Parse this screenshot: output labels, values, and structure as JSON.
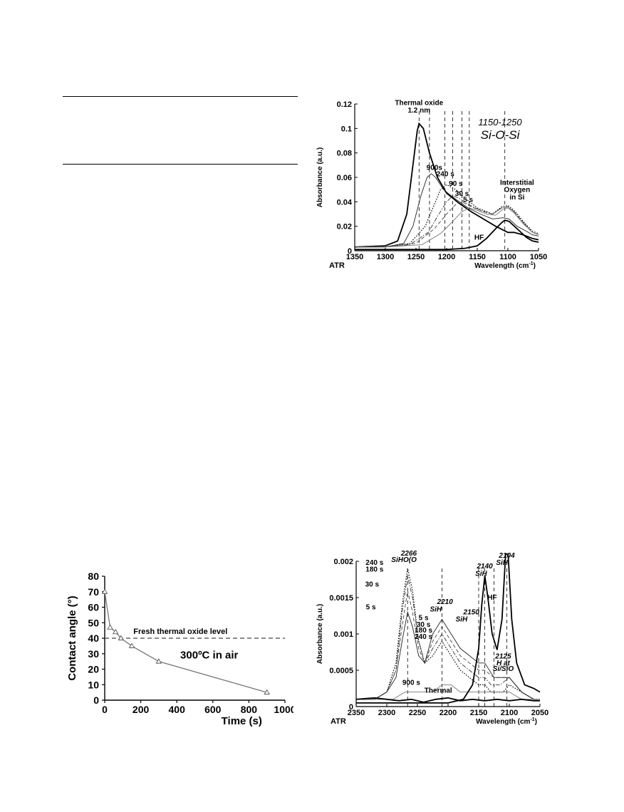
{
  "chart_data": [
    {
      "type": "line",
      "panel": "si-o-si",
      "title": "1150-1250",
      "subtitle": "Si-O-Si",
      "corner_label": "ATR",
      "xlabel": "Wavelength (cm",
      "xlabel_sup": "-1",
      "xlabel_end": ")",
      "ylabel": "Absorbance (a.u.)",
      "xlim": [
        1350,
        1050
      ],
      "ylim": [
        0,
        0.12
      ],
      "xticks": [
        "1350",
        "1300",
        "1250",
        "1200",
        "1150",
        "1100",
        "1050"
      ],
      "yticks": [
        "0",
        "0.02",
        "0.04",
        "0.06",
        "0.08",
        "0.1",
        "0.12"
      ],
      "annotations": [
        {
          "text": "Thermal oxide",
          "x": 1245,
          "y": 0.119
        },
        {
          "text": "1.2 nm",
          "x": 1245,
          "y": 0.113
        },
        {
          "text": "900s",
          "x": 1220,
          "y": 0.066
        },
        {
          "text": "240 s",
          "x": 1202,
          "y": 0.061
        },
        {
          "text": "90 s",
          "x": 1185,
          "y": 0.053
        },
        {
          "text": "30 s",
          "x": 1175,
          "y": 0.045
        },
        {
          "text": "5 s",
          "x": 1165,
          "y": 0.04
        },
        {
          "text": "HF",
          "x": 1147,
          "y": 0.009
        },
        {
          "text": "Interstitial",
          "x": 1085,
          "y": 0.054
        },
        {
          "text": "Oxygen",
          "x": 1085,
          "y": 0.048
        },
        {
          "text": "in Si",
          "x": 1085,
          "y": 0.042
        }
      ],
      "peak_lines": [
        1245,
        1228,
        1203,
        1190,
        1175,
        1163,
        1105
      ],
      "series": [
        {
          "label": "Thermal oxide",
          "style": "thick",
          "x": [
            1350,
            1300,
            1280,
            1265,
            1255,
            1248,
            1245,
            1238,
            1228,
            1215,
            1200,
            1180,
            1160,
            1140,
            1120,
            1108,
            1100,
            1090,
            1075,
            1060,
            1050
          ],
          "y": [
            0.003,
            0.004,
            0.008,
            0.03,
            0.07,
            0.098,
            0.104,
            0.1,
            0.08,
            0.06,
            0.047,
            0.039,
            0.032,
            0.026,
            0.02,
            0.017,
            0.015,
            0.015,
            0.013,
            0.01,
            0.009
          ]
        },
        {
          "label": "900s",
          "style": "thin",
          "x": [
            1350,
            1300,
            1270,
            1255,
            1242,
            1232,
            1225,
            1218,
            1205,
            1185,
            1165,
            1145,
            1125,
            1108,
            1098,
            1085,
            1070,
            1060,
            1050
          ],
          "y": [
            0.003,
            0.003,
            0.006,
            0.02,
            0.045,
            0.06,
            0.063,
            0.06,
            0.05,
            0.042,
            0.035,
            0.03,
            0.026,
            0.027,
            0.026,
            0.02,
            0.016,
            0.013,
            0.012
          ]
        },
        {
          "label": "240 s",
          "style": "dotted",
          "x": [
            1350,
            1300,
            1260,
            1235,
            1220,
            1210,
            1200,
            1185,
            1170,
            1150,
            1125,
            1110,
            1100,
            1090,
            1075,
            1060,
            1050
          ],
          "y": [
            0.003,
            0.003,
            0.006,
            0.02,
            0.038,
            0.05,
            0.054,
            0.05,
            0.043,
            0.035,
            0.03,
            0.036,
            0.037,
            0.033,
            0.024,
            0.016,
            0.014
          ]
        },
        {
          "label": "90 s",
          "style": "dashdot",
          "x": [
            1350,
            1300,
            1260,
            1230,
            1215,
            1200,
            1190,
            1180,
            1165,
            1145,
            1125,
            1110,
            1100,
            1090,
            1075,
            1060,
            1050
          ],
          "y": [
            0.003,
            0.003,
            0.005,
            0.015,
            0.028,
            0.04,
            0.045,
            0.043,
            0.038,
            0.033,
            0.03,
            0.035,
            0.036,
            0.032,
            0.023,
            0.015,
            0.013
          ]
        },
        {
          "label": "30 s",
          "style": "dashed",
          "x": [
            1350,
            1300,
            1250,
            1220,
            1200,
            1185,
            1175,
            1160,
            1140,
            1125,
            1110,
            1100,
            1090,
            1075,
            1060,
            1050
          ],
          "y": [
            0.003,
            0.003,
            0.006,
            0.018,
            0.03,
            0.038,
            0.04,
            0.036,
            0.032,
            0.03,
            0.035,
            0.036,
            0.032,
            0.023,
            0.015,
            0.013
          ]
        },
        {
          "label": "5 s",
          "style": "thin-gray",
          "x": [
            1350,
            1300,
            1240,
            1210,
            1190,
            1175,
            1163,
            1150,
            1135,
            1120,
            1108,
            1100,
            1090,
            1075,
            1060,
            1050
          ],
          "y": [
            0.003,
            0.003,
            0.005,
            0.014,
            0.024,
            0.032,
            0.035,
            0.033,
            0.03,
            0.029,
            0.034,
            0.035,
            0.031,
            0.022,
            0.015,
            0.013
          ]
        },
        {
          "label": "HF",
          "style": "thick",
          "x": [
            1350,
            1250,
            1200,
            1170,
            1150,
            1135,
            1120,
            1110,
            1105,
            1098,
            1085,
            1070,
            1060,
            1050
          ],
          "y": [
            0.001,
            0.001,
            0.001,
            0.002,
            0.004,
            0.01,
            0.018,
            0.023,
            0.025,
            0.024,
            0.018,
            0.011,
            0.008,
            0.007
          ]
        }
      ]
    },
    {
      "type": "scatter",
      "panel": "contact-angle",
      "xlabel": "Time (s)",
      "ylabel": "Contact angle (°)",
      "xlim": [
        0,
        1000
      ],
      "ylim": [
        0,
        80
      ],
      "xticks": [
        "0",
        "200",
        "400",
        "600",
        "800",
        "1000"
      ],
      "yticks": [
        "0",
        "10",
        "20",
        "30",
        "40",
        "50",
        "60",
        "70",
        "80"
      ],
      "reference_line": {
        "label": "Fresh thermal oxide level",
        "y": 40
      },
      "annotation": "300ºC  in air",
      "series": [
        {
          "x": [
            0,
            30,
            60,
            90,
            150,
            300,
            900
          ],
          "y": [
            70,
            47,
            44,
            40,
            35,
            25,
            5
          ]
        }
      ]
    },
    {
      "type": "line",
      "panel": "si-h",
      "corner_label": "ATR",
      "xlabel": "Wavelength (cm",
      "xlabel_sup": "-1",
      "xlabel_end": ")",
      "ylabel": "Absorbance (a.u.)",
      "xlim": [
        2350,
        2050
      ],
      "ylim": [
        0,
        0.002
      ],
      "xticks": [
        "2350",
        "2300",
        "2250",
        "2200",
        "2150",
        "2100",
        "2050"
      ],
      "yticks": [
        "0",
        "0.0005",
        "0.001",
        "0.0015",
        "0.002"
      ],
      "peak_lines": [
        2266,
        2210,
        2150,
        2140,
        2125,
        2104
      ],
      "annotations": [
        {
          "text": "2266",
          "x": 2264,
          "y": 0.00208,
          "italic": true
        },
        {
          "text": "SiHO(O",
          "x": 2272,
          "y": 0.00199,
          "italic": true
        },
        {
          "text": "2210",
          "x": 2205,
          "y": 0.00141,
          "italic": true
        },
        {
          "text": "SiH",
          "x": 2220,
          "y": 0.00131,
          "italic": true
        },
        {
          "text": "2150",
          "x": 2162,
          "y": 0.00127,
          "italic": true
        },
        {
          "text": "SiH",
          "x": 2178,
          "y": 0.00117,
          "italic": true
        },
        {
          "text": "2140",
          "x": 2140,
          "y": 0.0019,
          "italic": true
        },
        {
          "text": "SiH",
          "x": 2146,
          "y": 0.0018,
          "italic": true
        },
        {
          "text": "2104",
          "x": 2104,
          "y": 0.00205,
          "italic": true
        },
        {
          "text": "SiH",
          "x": 2112,
          "y": 0.00195,
          "italic": true
        },
        {
          "text": "HF",
          "x": 2128,
          "y": 0.00147
        },
        {
          "text": "2125",
          "x": 2110,
          "y": 0.00066,
          "italic": true
        },
        {
          "text": "H at",
          "x": 2110,
          "y": 0.00057,
          "italic": true
        },
        {
          "text": "Si/SiO",
          "x": 2110,
          "y": 0.00049,
          "italic": true
        },
        {
          "text": "240 s",
          "x": 2320,
          "y": 0.00195
        },
        {
          "text": "180 s",
          "x": 2320,
          "y": 0.00186
        },
        {
          "text": "30 s",
          "x": 2324,
          "y": 0.00165
        },
        {
          "text": "5 s",
          "x": 2326,
          "y": 0.00134
        },
        {
          "text": "5 s",
          "x": 2240,
          "y": 0.00119
        },
        {
          "text": "30 s",
          "x": 2240,
          "y": 0.0011
        },
        {
          "text": "180 s",
          "x": 2240,
          "y": 0.00102
        },
        {
          "text": "240 s",
          "x": 2240,
          "y": 0.00093
        },
        {
          "text": "900 s",
          "x": 2260,
          "y": 0.0003
        },
        {
          "text": "Thermal",
          "x": 2216,
          "y": 0.00019
        }
      ],
      "series": [
        {
          "label": "240 s",
          "style": "dotted",
          "x": [
            2350,
            2320,
            2300,
            2285,
            2275,
            2266,
            2258,
            2248,
            2238,
            2225,
            2210,
            2195,
            2180,
            2165,
            2150,
            2140,
            2130,
            2120,
            2110,
            2100,
            2080,
            2060,
            2050
          ],
          "y": [
            0.0001,
            0.0001,
            0.0002,
            0.0006,
            0.0014,
            0.0019,
            0.0016,
            0.0009,
            0.0006,
            0.0007,
            0.0009,
            0.0007,
            0.0005,
            0.0004,
            0.0003,
            0.0003,
            0.0002,
            0.0002,
            0.0002,
            0.0003,
            0.0002,
            0.0001,
            0.0001
          ]
        },
        {
          "label": "180 s",
          "style": "dashdot",
          "x": [
            2350,
            2320,
            2300,
            2285,
            2275,
            2266,
            2258,
            2248,
            2238,
            2225,
            2210,
            2195,
            2180,
            2165,
            2150,
            2140,
            2130,
            2115,
            2100,
            2080,
            2060,
            2050
          ],
          "y": [
            0.0001,
            0.0001,
            0.0002,
            0.0005,
            0.0013,
            0.0018,
            0.0015,
            0.0009,
            0.0006,
            0.0008,
            0.001,
            0.0008,
            0.0006,
            0.0005,
            0.0004,
            0.0004,
            0.0003,
            0.0003,
            0.0004,
            0.0002,
            0.0001,
            0.0001
          ]
        },
        {
          "label": "30 s",
          "style": "dashed",
          "x": [
            2350,
            2320,
            2300,
            2285,
            2275,
            2266,
            2258,
            2248,
            2238,
            2225,
            2210,
            2195,
            2180,
            2165,
            2150,
            2140,
            2125,
            2110,
            2100,
            2080,
            2060,
            2050
          ],
          "y": [
            0.0001,
            0.0001,
            0.0002,
            0.0005,
            0.0011,
            0.0016,
            0.0013,
            0.0008,
            0.0006,
            0.0009,
            0.0011,
            0.0009,
            0.0007,
            0.0006,
            0.0005,
            0.0005,
            0.0004,
            0.0004,
            0.0004,
            0.0002,
            0.0001,
            0.0001
          ]
        },
        {
          "label": "5 s",
          "style": "thin",
          "x": [
            2350,
            2320,
            2300,
            2285,
            2275,
            2266,
            2258,
            2248,
            2238,
            2225,
            2210,
            2195,
            2180,
            2165,
            2150,
            2140,
            2125,
            2110,
            2100,
            2080,
            2060,
            2050
          ],
          "y": [
            0.0001,
            0.0001,
            0.0002,
            0.0004,
            0.0009,
            0.0013,
            0.0011,
            0.0007,
            0.0006,
            0.001,
            0.0012,
            0.001,
            0.0008,
            0.0007,
            0.0006,
            0.0006,
            0.0004,
            0.0004,
            0.0004,
            0.0002,
            0.0001,
            0.0001
          ]
        },
        {
          "label": "900 s",
          "style": "thin-gray",
          "x": [
            2350,
            2320,
            2290,
            2270,
            2255,
            2240,
            2225,
            2210,
            2195,
            2180,
            2160,
            2140,
            2120,
            2100,
            2080,
            2060,
            2050
          ],
          "y": [
            0.0001,
            0.0001,
            0.0001,
            0.0002,
            0.0002,
            0.0002,
            0.0002,
            0.0003,
            0.0003,
            0.0002,
            0.0002,
            0.0002,
            0.0002,
            0.0002,
            0.0001,
            0.0001,
            0.0001
          ]
        },
        {
          "label": "Thermal",
          "style": "thick",
          "x": [
            2350,
            2320,
            2300,
            2280,
            2260,
            2240,
            2220,
            2200,
            2180,
            2160,
            2140,
            2120,
            2100,
            2080,
            2060,
            2050
          ],
          "y": [
            0.0001,
            0.00012,
            0.0001,
            8e-05,
            0.0001,
            6e-05,
            0.0001,
            0.00012,
            8e-05,
            0.0001,
            8e-05,
            0.0001,
            8e-05,
            0.0001,
            8e-05,
            8e-05
          ]
        },
        {
          "label": "HF",
          "style": "thick",
          "x": [
            2350,
            2250,
            2200,
            2175,
            2160,
            2150,
            2145,
            2140,
            2135,
            2128,
            2120,
            2112,
            2106,
            2102,
            2096,
            2088,
            2075,
            2060,
            2050
          ],
          "y": [
            5e-05,
            5e-05,
            5e-05,
            0.0001,
            0.0003,
            0.0008,
            0.0014,
            0.0018,
            0.0015,
            0.001,
            0.00078,
            0.0012,
            0.0021,
            0.0021,
            0.0012,
            0.0006,
            0.0003,
            0.00025,
            0.0002
          ]
        }
      ]
    }
  ]
}
